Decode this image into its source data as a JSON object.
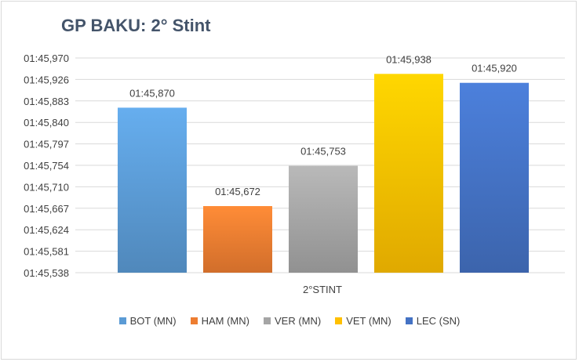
{
  "chart_data": {
    "type": "bar",
    "title": "GP BAKU: 2° Stint",
    "categories": [
      "2°STINT"
    ],
    "xlabel": "",
    "ylabel": "",
    "y_ticks": [
      "01:45,538",
      "01:45,581",
      "01:45,624",
      "01:45,667",
      "01:45,710",
      "01:45,754",
      "01:45,797",
      "01:45,840",
      "01:45,883",
      "01:45,926",
      "01:45,970"
    ],
    "ylim": [
      105.538,
      105.97
    ],
    "grid": true,
    "legend_position": "bottom",
    "series": [
      {
        "name": "BOT (MN)",
        "value": 105.87,
        "label": "01:45,870",
        "color": "#5b9bd5"
      },
      {
        "name": "HAM (MN)",
        "value": 105.672,
        "label": "01:45,672",
        "color": "#ed7d31"
      },
      {
        "name": "VER (MN)",
        "value": 105.753,
        "label": "01:45,753",
        "color": "#a5a5a5"
      },
      {
        "name": "VET (MN)",
        "value": 105.938,
        "label": "01:45,938",
        "color": "#ffc000"
      },
      {
        "name": "LEC (SN)",
        "value": 105.92,
        "label": "01:45,920",
        "color": "#4472c4"
      }
    ]
  }
}
